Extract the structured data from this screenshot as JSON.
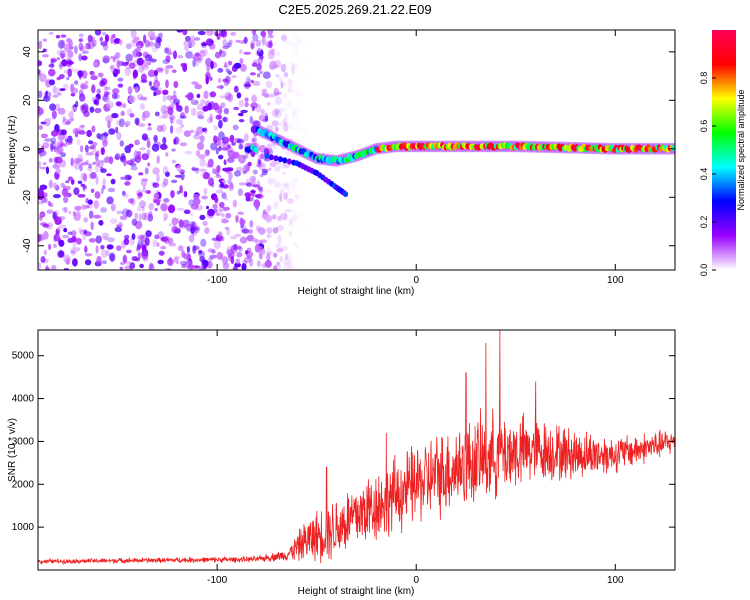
{
  "title": "C2E5.2025.269.21.22.E09",
  "colors": {
    "snr_line": "#ee2222",
    "axis": "#000000"
  },
  "chart_data": [
    {
      "type": "heatmap",
      "name": "spectrogram",
      "xlabel": "Height of straight line (km)",
      "ylabel": "Frequency (Hz)",
      "xlim": [
        -190,
        130
      ],
      "ylim": [
        -50,
        49
      ],
      "x_ticks": [
        -100,
        0,
        100
      ],
      "y_ticks": [
        -40,
        -20,
        0,
        20,
        40
      ],
      "colorbar": {
        "label": "Normalized spectral amplitude",
        "range": [
          0.0,
          1.0
        ],
        "ticks": [
          "0.0",
          "0.2",
          "0.4",
          "0.6",
          "0.8"
        ],
        "tick_values": [
          0.0,
          0.2,
          0.4,
          0.6,
          0.8
        ],
        "colors": [
          "#ffffff",
          "#9900ff",
          "#0000ff",
          "#00ffff",
          "#00ff00",
          "#ffff00",
          "#ff0000",
          "#ff0055"
        ]
      },
      "features": {
        "noise_region_x": [
          -190,
          -60
        ],
        "signal_track": [
          {
            "x": -80,
            "y": 8
          },
          {
            "x": -70,
            "y": 4
          },
          {
            "x": -60,
            "y": 0
          },
          {
            "x": -50,
            "y": -4
          },
          {
            "x": -40,
            "y": -5
          },
          {
            "x": -30,
            "y": -3
          },
          {
            "x": -20,
            "y": 0
          },
          {
            "x": -10,
            "y": 1
          },
          {
            "x": 0,
            "y": 1
          },
          {
            "x": 50,
            "y": 1
          },
          {
            "x": 100,
            "y": 0
          },
          {
            "x": 130,
            "y": 0
          }
        ],
        "lower_branch": [
          {
            "x": -75,
            "y": -3
          },
          {
            "x": -60,
            "y": -6
          },
          {
            "x": -50,
            "y": -10
          },
          {
            "x": -40,
            "y": -16
          },
          {
            "x": -35,
            "y": -19
          }
        ]
      }
    },
    {
      "type": "line",
      "name": "snr",
      "xlabel": "Height of straight line (km)",
      "ylabel": "SNR (10 * v/v)",
      "xlim": [
        -190,
        130
      ],
      "ylim": [
        0,
        5600
      ],
      "x_ticks": [
        -100,
        0,
        100
      ],
      "y_ticks": [
        1000,
        2000,
        3000,
        4000,
        5000
      ],
      "envelope": [
        {
          "x": -190,
          "base": 200,
          "amp": 60
        },
        {
          "x": -80,
          "base": 250,
          "amp": 80
        },
        {
          "x": -65,
          "base": 350,
          "amp": 150
        },
        {
          "x": -55,
          "base": 700,
          "amp": 600
        },
        {
          "x": -40,
          "base": 1000,
          "amp": 900
        },
        {
          "x": -25,
          "base": 1400,
          "amp": 1000
        },
        {
          "x": 0,
          "base": 2000,
          "amp": 1100
        },
        {
          "x": 20,
          "base": 2400,
          "amp": 1200
        },
        {
          "x": 40,
          "base": 2700,
          "amp": 1200
        },
        {
          "x": 60,
          "base": 2800,
          "amp": 900
        },
        {
          "x": 80,
          "base": 2700,
          "amp": 700
        },
        {
          "x": 100,
          "base": 2700,
          "amp": 500
        },
        {
          "x": 130,
          "base": 3000,
          "amp": 350
        }
      ],
      "peaks": [
        {
          "x": -45,
          "y": 2400
        },
        {
          "x": -15,
          "y": 3200
        },
        {
          "x": 25,
          "y": 4600
        },
        {
          "x": 35,
          "y": 5300
        },
        {
          "x": 42,
          "y": 5600
        },
        {
          "x": 60,
          "y": 4400
        }
      ]
    }
  ]
}
